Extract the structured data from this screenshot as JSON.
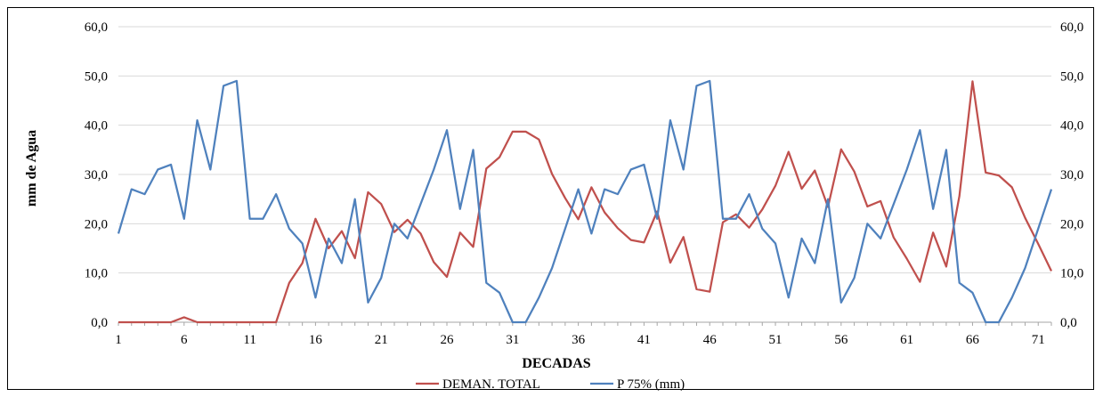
{
  "chart_data": {
    "type": "line",
    "xlabel": "DECADAS",
    "ylabel": "mm de Agua",
    "ylim": [
      0,
      60
    ],
    "xlim": [
      1,
      72
    ],
    "y_ticks": [
      "0,0",
      "10,0",
      "20,0",
      "30,0",
      "40,0",
      "50,0",
      "60,0"
    ],
    "y_tick_values": [
      0,
      10,
      20,
      30,
      40,
      50,
      60
    ],
    "y2_ticks": [
      "0,0",
      "10,0",
      "20,0",
      "30,0",
      "40,0",
      "50,0",
      "60,0"
    ],
    "x_ticks": [
      "1",
      "6",
      "11",
      "16",
      "21",
      "26",
      "31",
      "36",
      "41",
      "46",
      "51",
      "56",
      "61",
      "66",
      "71"
    ],
    "x_tick_values": [
      1,
      6,
      11,
      16,
      21,
      26,
      31,
      36,
      41,
      46,
      51,
      56,
      61,
      66,
      71
    ],
    "grid": true,
    "legend": "bottom",
    "series": [
      {
        "name": "DEMAN. TOTAL",
        "color": "#c0504d",
        "values": [
          0,
          0,
          0,
          0,
          0,
          1,
          0,
          0,
          0,
          0,
          0,
          0,
          0,
          8,
          12,
          21,
          15,
          18.5,
          13,
          26.4,
          24,
          18.3,
          20.8,
          18,
          12.2,
          9.2,
          18.2,
          15.3,
          31.2,
          33.5,
          38.7,
          38.7,
          37.1,
          30.1,
          25.2,
          20.9,
          27.4,
          22.3,
          19.1,
          16.7,
          16.2,
          22.5,
          12.1,
          17.3,
          6.7,
          6.2,
          20.3,
          21.9,
          19.2,
          22.9,
          27.7,
          34.6,
          27.1,
          30.8,
          23.4,
          35.1,
          30.6,
          23.5,
          24.6,
          17.2,
          12.9,
          8.2,
          18.2,
          11.3,
          25.6,
          48.9,
          30.4,
          29.8,
          27.4,
          21.2,
          15.9,
          10.4
        ]
      },
      {
        "name": "P 75% (mm)",
        "color": "#4f81bd",
        "values": [
          18,
          27,
          26,
          31,
          32,
          21,
          41,
          31,
          48,
          49,
          21,
          21,
          26,
          19,
          16,
          5,
          17,
          12,
          25,
          4,
          9,
          20,
          17,
          24,
          31,
          39,
          23,
          35,
          8,
          6,
          0,
          0,
          5,
          11,
          19,
          27,
          18,
          27,
          26,
          31,
          32,
          21,
          41,
          31,
          48,
          49,
          21,
          21,
          26,
          19,
          16,
          5,
          17,
          12,
          25,
          4,
          9,
          20,
          17,
          24,
          31,
          39,
          23,
          35,
          8,
          6,
          0,
          0,
          5,
          11,
          19,
          27
        ]
      }
    ]
  }
}
